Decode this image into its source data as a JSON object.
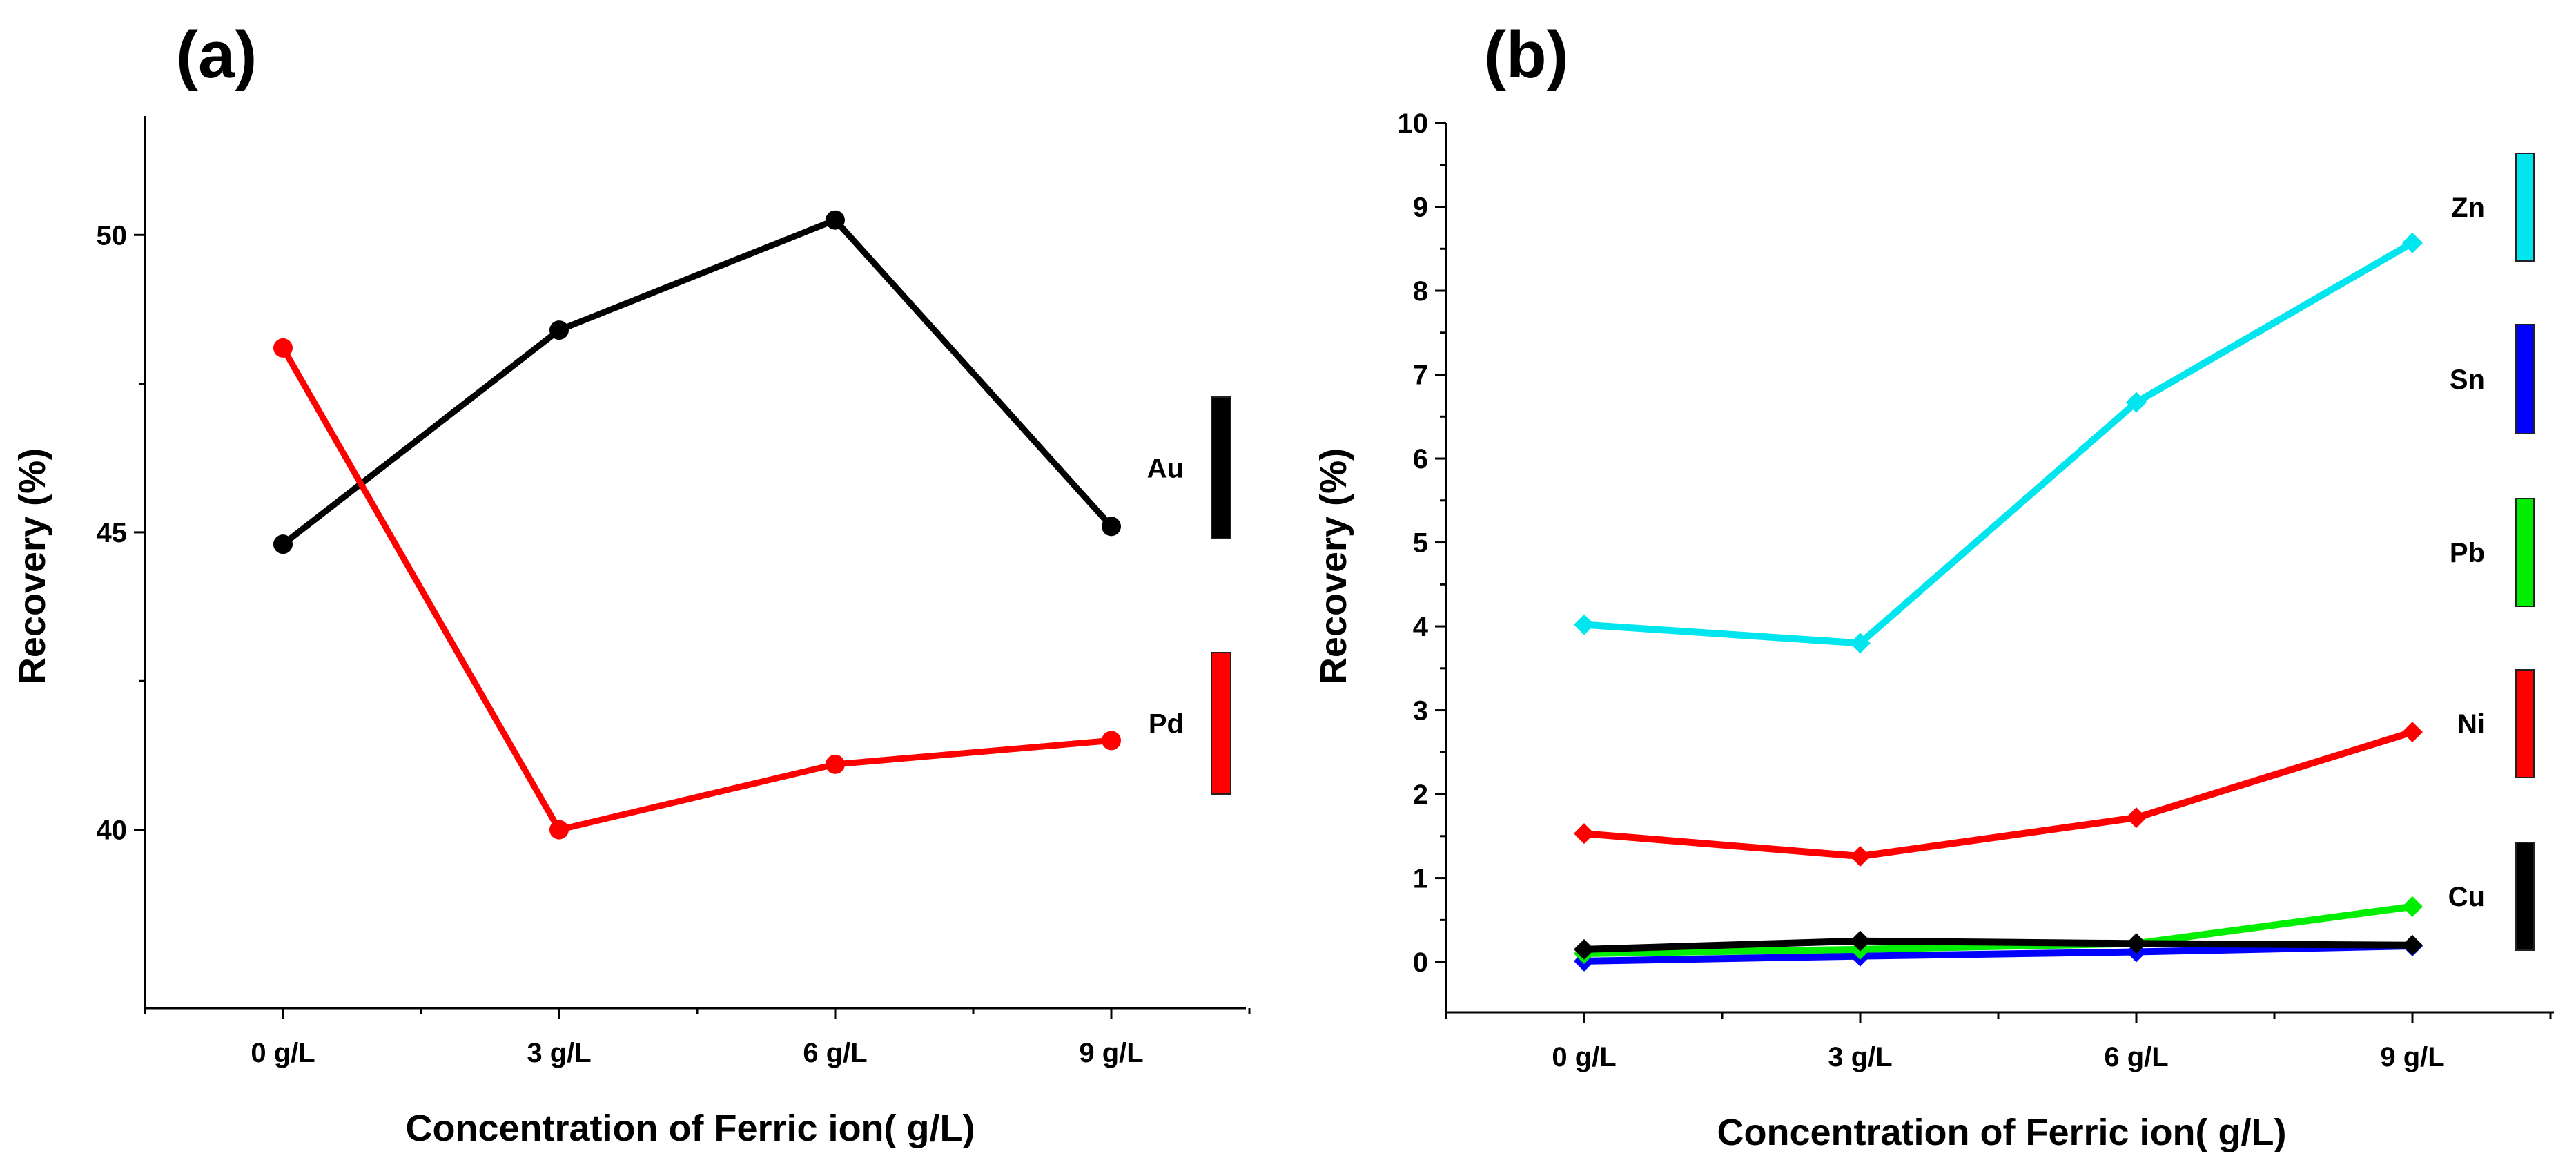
{
  "chart_data": [
    {
      "panel_label": "(a)",
      "type": "line",
      "categories": [
        "0 g/L",
        "3 g/L",
        "6 g/L",
        "9 g/L"
      ],
      "xlabel": "Concentration of Ferric ion( g/L)",
      "ylabel": "Recovery (%)",
      "ylim": [
        37,
        52
      ],
      "yticks": [
        40,
        45,
        50
      ],
      "y_tick_labels": [
        "40",
        "45",
        "50"
      ],
      "series": [
        {
          "name": "Au",
          "color": "#000000",
          "marker": "circle",
          "values": [
            44.8,
            48.4,
            50.25,
            45.1
          ]
        },
        {
          "name": "Pd",
          "color": "#ff0000",
          "marker": "circle",
          "values": [
            48.1,
            40.0,
            41.1,
            41.5
          ]
        }
      ]
    },
    {
      "panel_label": "(b)",
      "type": "line",
      "categories": [
        "0 g/L",
        "3 g/L",
        "6 g/L",
        "9 g/L"
      ],
      "xlabel": "Concentration of Ferric ion( g/L)",
      "ylabel": "Recovery (%)",
      "ylim": [
        -0.6,
        10
      ],
      "yticks": [
        0,
        1,
        2,
        3,
        4,
        5,
        6,
        7,
        8,
        9,
        10
      ],
      "y_tick_labels": [
        "0",
        "1",
        "2",
        "3",
        "4",
        "5",
        "6",
        "7",
        "8",
        "9",
        "10"
      ],
      "series": [
        {
          "name": "Zn",
          "color": "#00e5ee",
          "marker": "diamond",
          "values": [
            4.02,
            3.8,
            6.67,
            8.57
          ]
        },
        {
          "name": "Sn",
          "color": "#0000ff",
          "marker": "diamond",
          "values": [
            0.01,
            0.07,
            0.12,
            0.19
          ]
        },
        {
          "name": "Pb",
          "color": "#00ee00",
          "marker": "diamond",
          "values": [
            0.1,
            0.15,
            0.22,
            0.66
          ]
        },
        {
          "name": "Ni",
          "color": "#ff0000",
          "marker": "diamond",
          "values": [
            1.53,
            1.26,
            1.72,
            2.74
          ]
        },
        {
          "name": "Cu",
          "color": "#000000",
          "marker": "diamond",
          "values": [
            0.15,
            0.25,
            0.22,
            0.2
          ]
        }
      ]
    }
  ]
}
